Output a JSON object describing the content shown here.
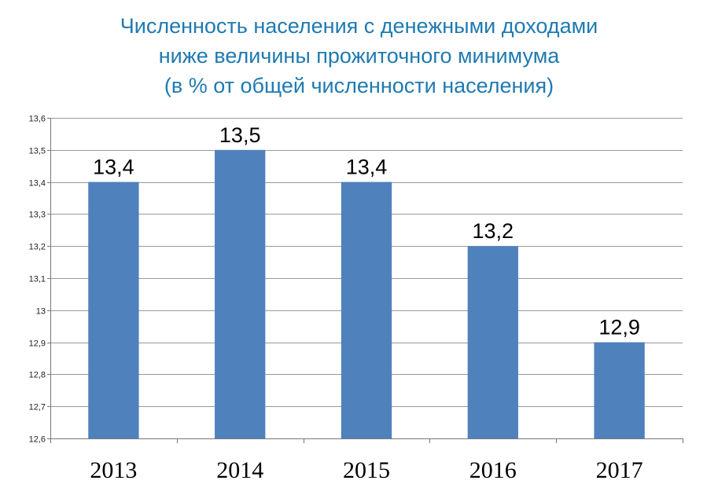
{
  "chart_data": {
    "type": "bar",
    "title_lines": [
      "Численность населения с денежными доходами",
      "ниже величины прожиточного минимума",
      "(в % от общей численности населения)"
    ],
    "categories": [
      "2013",
      "2014",
      "2015",
      "2016",
      "2017"
    ],
    "values": [
      13.4,
      13.5,
      13.4,
      13.2,
      12.9
    ],
    "data_labels": [
      "13,4",
      "13,5",
      "13,4",
      "13,2",
      "12,9"
    ],
    "yticks": [
      12.6,
      12.7,
      12.8,
      12.9,
      13.0,
      13.1,
      13.2,
      13.3,
      13.4,
      13.5,
      13.6
    ],
    "ytick_labels": [
      "12,6",
      "12,7",
      "12,8",
      "12,9",
      "13",
      "13,1",
      "13,2",
      "13,3",
      "13,4",
      "13,5",
      "13,6"
    ],
    "ylim": [
      12.6,
      13.6
    ],
    "grid": true,
    "legend": "none",
    "colors": {
      "bar": "#4f81bd",
      "title": "#1f7ab0",
      "grid": "#999999",
      "axis": "#777777"
    }
  }
}
